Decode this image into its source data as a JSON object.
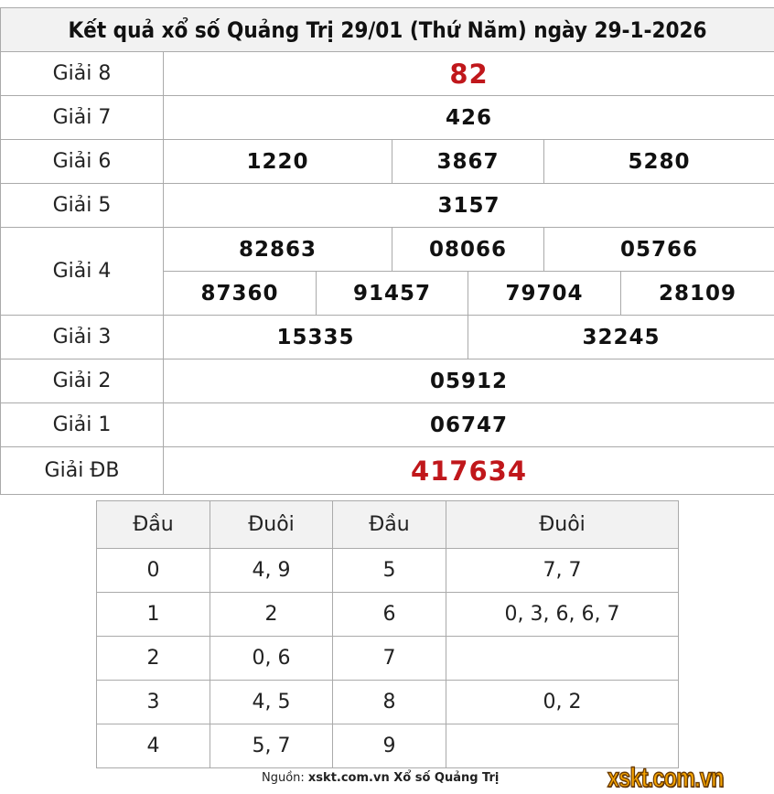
{
  "title": "Kết quả xổ số Quảng Trị 29/01 (Thứ Năm) ngày 29-1-2026",
  "prizes": {
    "g8": {
      "label": "Giải 8",
      "values": [
        "82"
      ]
    },
    "g7": {
      "label": "Giải 7",
      "values": [
        "426"
      ]
    },
    "g6": {
      "label": "Giải 6",
      "values": [
        "1220",
        "3867",
        "5280"
      ]
    },
    "g5": {
      "label": "Giải 5",
      "values": [
        "3157"
      ]
    },
    "g4": {
      "label": "Giải 4",
      "values": [
        "82863",
        "08066",
        "05766",
        "87360",
        "91457",
        "79704",
        "28109"
      ]
    },
    "g3": {
      "label": "Giải 3",
      "values": [
        "15335",
        "32245"
      ]
    },
    "g2": {
      "label": "Giải 2",
      "values": [
        "05912"
      ]
    },
    "g1": {
      "label": "Giải 1",
      "values": [
        "06747"
      ]
    },
    "db": {
      "label": "Giải ĐB",
      "values": [
        "417634"
      ]
    }
  },
  "loto": {
    "headers": [
      "Đầu",
      "Đuôi",
      "Đầu",
      "Đuôi"
    ],
    "rows": [
      [
        "0",
        "4, 9",
        "5",
        "7, 7"
      ],
      [
        "1",
        "2",
        "6",
        "0, 3, 6, 6, 7"
      ],
      [
        "2",
        "0, 6",
        "7",
        ""
      ],
      [
        "3",
        "4, 5",
        "8",
        "0, 2"
      ],
      [
        "4",
        "5, 7",
        "9",
        ""
      ]
    ]
  },
  "footer": {
    "prefix": "Nguồn: ",
    "source": "xskt.com.vn Xổ số Quảng Trị",
    "logo": "xskt.com.vn"
  },
  "colors": {
    "special": "#c0171b"
  }
}
